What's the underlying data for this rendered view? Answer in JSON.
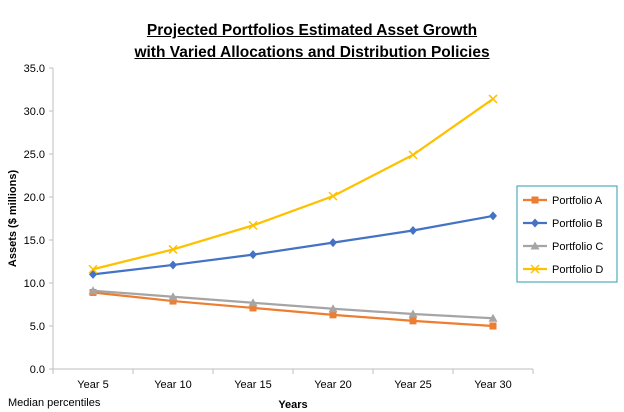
{
  "chart_data": {
    "type": "line",
    "title_line1": "Projected Portfolios Estimated Asset Growth",
    "title_line2": "with Varied Allocations and Distribution Policies",
    "xlabel": "Years",
    "ylabel": "Assets ($ millions)",
    "ylim": [
      0,
      35
    ],
    "yticks": [
      "0.0",
      "5.0",
      "10.0",
      "15.0",
      "20.0",
      "25.0",
      "30.0",
      "35.0"
    ],
    "categories": [
      "Year 5",
      "Year 10",
      "Year 15",
      "Year 20",
      "Year 25",
      "Year 30"
    ],
    "grid": false,
    "legend_position": "right",
    "series": [
      {
        "name": "Portfolio A",
        "color": "#ED7D31",
        "marker": "square",
        "values": [
          8.9,
          7.9,
          7.1,
          6.3,
          5.6,
          5.0
        ]
      },
      {
        "name": "Portfolio B",
        "color": "#4472C4",
        "marker": "diamond",
        "values": [
          11.0,
          12.1,
          13.3,
          14.7,
          16.1,
          17.8
        ]
      },
      {
        "name": "Portfolio C",
        "color": "#A5A5A5",
        "marker": "triangle",
        "values": [
          9.1,
          8.4,
          7.7,
          7.0,
          6.4,
          5.9
        ]
      },
      {
        "name": "Portfolio D",
        "color": "#FFC000",
        "marker": "x",
        "values": [
          11.6,
          13.9,
          16.7,
          20.1,
          24.9,
          31.4
        ]
      }
    ]
  },
  "footnote": "Median percentiles"
}
